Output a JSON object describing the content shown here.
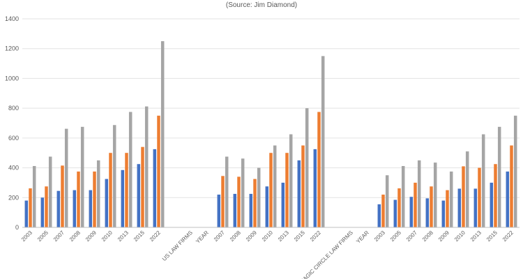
{
  "chart_data": {
    "type": "bar",
    "title": "",
    "subtitle": "(Source: Jim Diamond)",
    "xlabel": "",
    "ylabel": "",
    "ylim": [
      0,
      1400
    ],
    "yticks": [
      0,
      200,
      400,
      600,
      800,
      1000,
      1200,
      1400
    ],
    "grid": true,
    "legend": "none",
    "categories": [
      "2003",
      "2005",
      "2007",
      "2008",
      "2009",
      "2010",
      "2013",
      "2015",
      "2022",
      "",
      "US LAW FIRMS",
      "YEAR",
      "2007",
      "2008",
      "2009",
      "2010",
      "2013",
      "2015",
      "2022",
      "",
      "MAGIC CIRCLE LAW FIRMS",
      "YEAR",
      "2003",
      "2005",
      "2007",
      "2008",
      "2009",
      "2010",
      "2013",
      "2015",
      "2022"
    ],
    "series": [
      {
        "color": "#4472c4",
        "values": [
          180,
          200,
          245,
          250,
          250,
          325,
          385,
          425,
          525,
          null,
          null,
          null,
          220,
          225,
          225,
          275,
          300,
          450,
          525,
          null,
          null,
          null,
          155,
          185,
          205,
          195,
          180,
          260,
          260,
          300,
          375
        ]
      },
      {
        "color": "#ed7d31",
        "values": [
          262,
          275,
          415,
          375,
          375,
          500,
          500,
          540,
          750,
          null,
          null,
          null,
          345,
          340,
          325,
          500,
          500,
          550,
          775,
          null,
          null,
          null,
          220,
          262,
          300,
          275,
          250,
          410,
          400,
          425,
          550
        ]
      },
      {
        "color": "#a5a5a5",
        "values": [
          412,
          475,
          662,
          675,
          450,
          687,
          775,
          812,
          1250,
          null,
          null,
          null,
          475,
          462,
          400,
          550,
          625,
          800,
          1150,
          null,
          null,
          null,
          350,
          412,
          450,
          435,
          375,
          510,
          625,
          675,
          750
        ]
      }
    ]
  }
}
